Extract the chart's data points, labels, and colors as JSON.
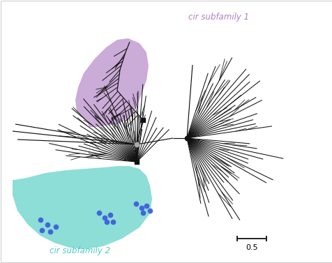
{
  "background_color": "#ffffff",
  "border_color": "#cccccc",
  "subfamily1_color": "#b07fc4",
  "subfamily2_color": "#4ecdc0",
  "dot_color": "#3b5bdb",
  "line_color": "#111111",
  "subfamily1_label": "cir subfamily 1",
  "subfamily2_label": "cir subfamily 2",
  "scalebar_value": "0.5",
  "label_fontsize": 8.5
}
